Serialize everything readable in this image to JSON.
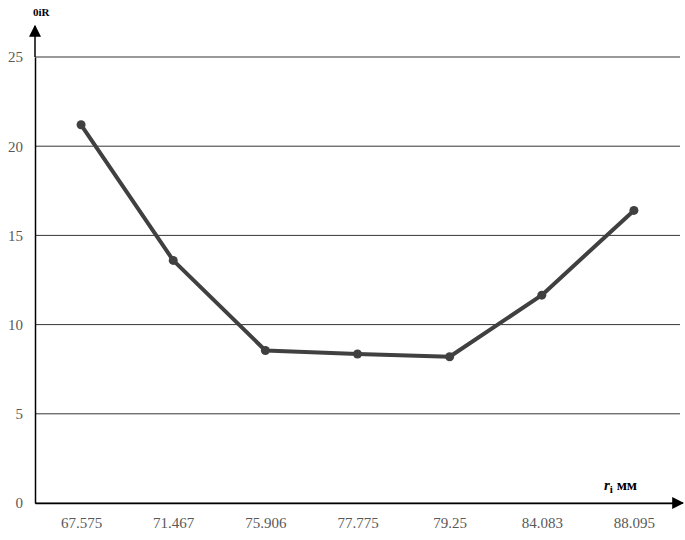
{
  "chart_data": {
    "type": "line",
    "x_label": "ri мм",
    "y_label": "0iR",
    "categories": [
      "67.575",
      "71.467",
      "75.906",
      "77.775",
      "79.25",
      "84.083",
      "88.095"
    ],
    "values": [
      21.2,
      13.6,
      8.55,
      8.35,
      8.2,
      11.65,
      16.4
    ],
    "color": "#404040",
    "marker": "circle",
    "ylim": [
      0,
      25
    ],
    "yticks": [
      0,
      5,
      10,
      15,
      20,
      25
    ],
    "grid": true
  }
}
